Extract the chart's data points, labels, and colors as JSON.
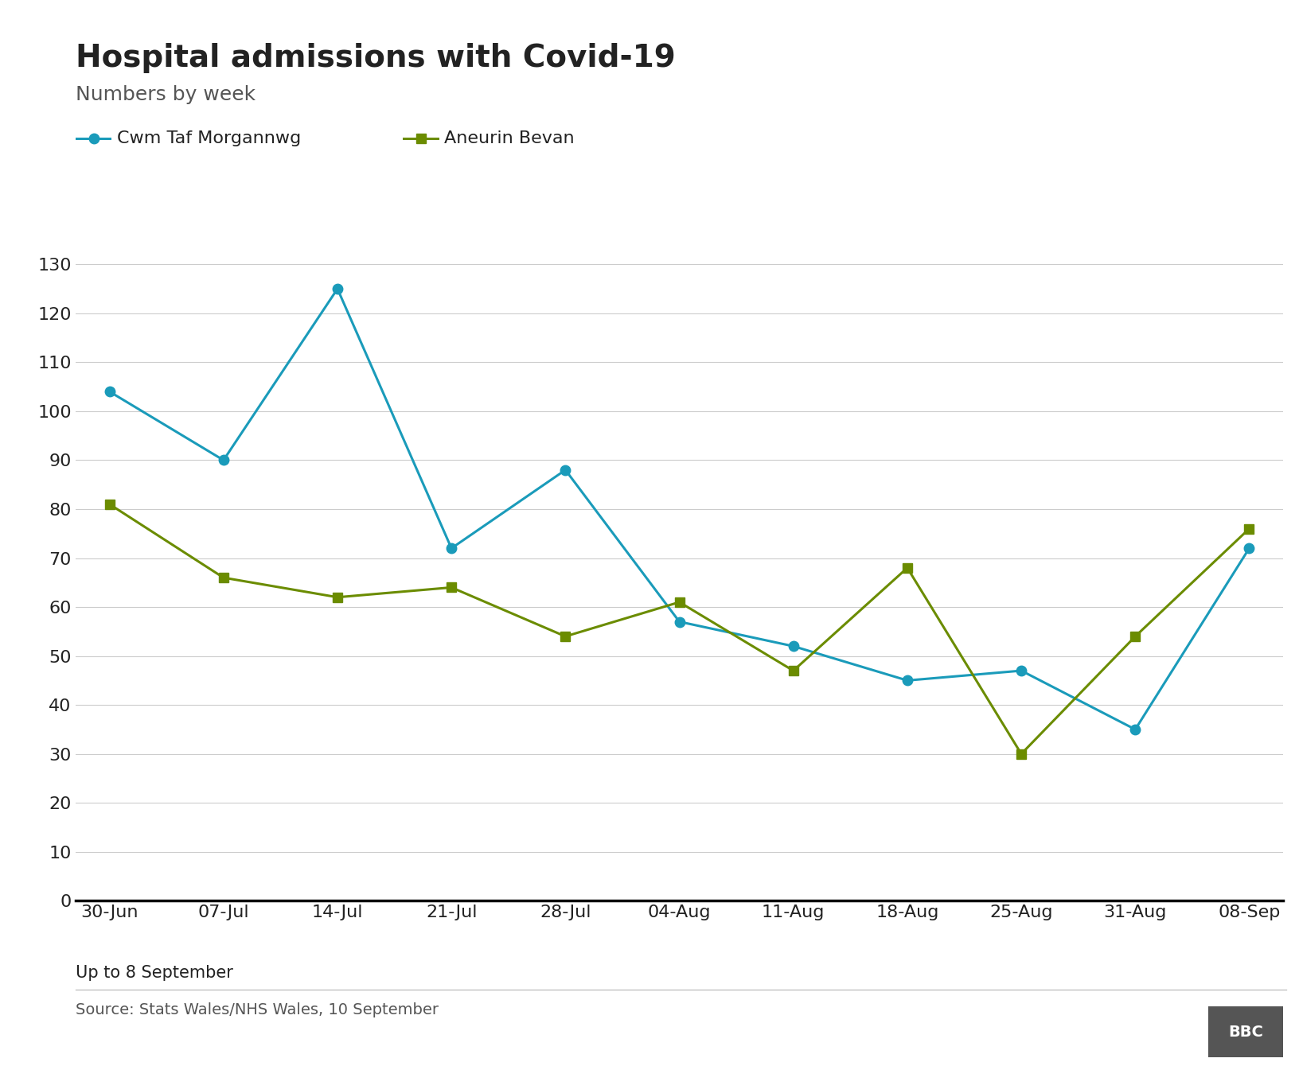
{
  "title": "Hospital admissions with Covid-19",
  "subtitle": "Numbers by week",
  "caption": "Up to 8 September",
  "source": "Source: Stats Wales/NHS Wales, 10 September",
  "x_labels": [
    "30-Jun",
    "07-Jul",
    "14-Jul",
    "21-Jul",
    "28-Jul",
    "04-Aug",
    "11-Aug",
    "18-Aug",
    "25-Aug",
    "31-Aug",
    "08-Sep"
  ],
  "cwm_taf": [
    104,
    90,
    125,
    72,
    88,
    57,
    52,
    45,
    47,
    35,
    72
  ],
  "aneurin_bevan": [
    81,
    66,
    62,
    64,
    54,
    61,
    47,
    68,
    30,
    54,
    76
  ],
  "cwm_color": "#1a9bba",
  "aneurin_color": "#6b8c00",
  "title_fontsize": 28,
  "subtitle_fontsize": 18,
  "legend_fontsize": 16,
  "tick_fontsize": 16,
  "caption_fontsize": 15,
  "source_fontsize": 14,
  "ylim": [
    0,
    135
  ],
  "yticks": [
    0,
    10,
    20,
    30,
    40,
    50,
    60,
    70,
    80,
    90,
    100,
    110,
    120,
    130
  ],
  "background_color": "#ffffff",
  "axis_line_color": "#000000",
  "grid_color": "#cccccc",
  "bbc_box_color": "#555555",
  "text_dark": "#222222",
  "text_mid": "#555555",
  "text_light": "#444444"
}
